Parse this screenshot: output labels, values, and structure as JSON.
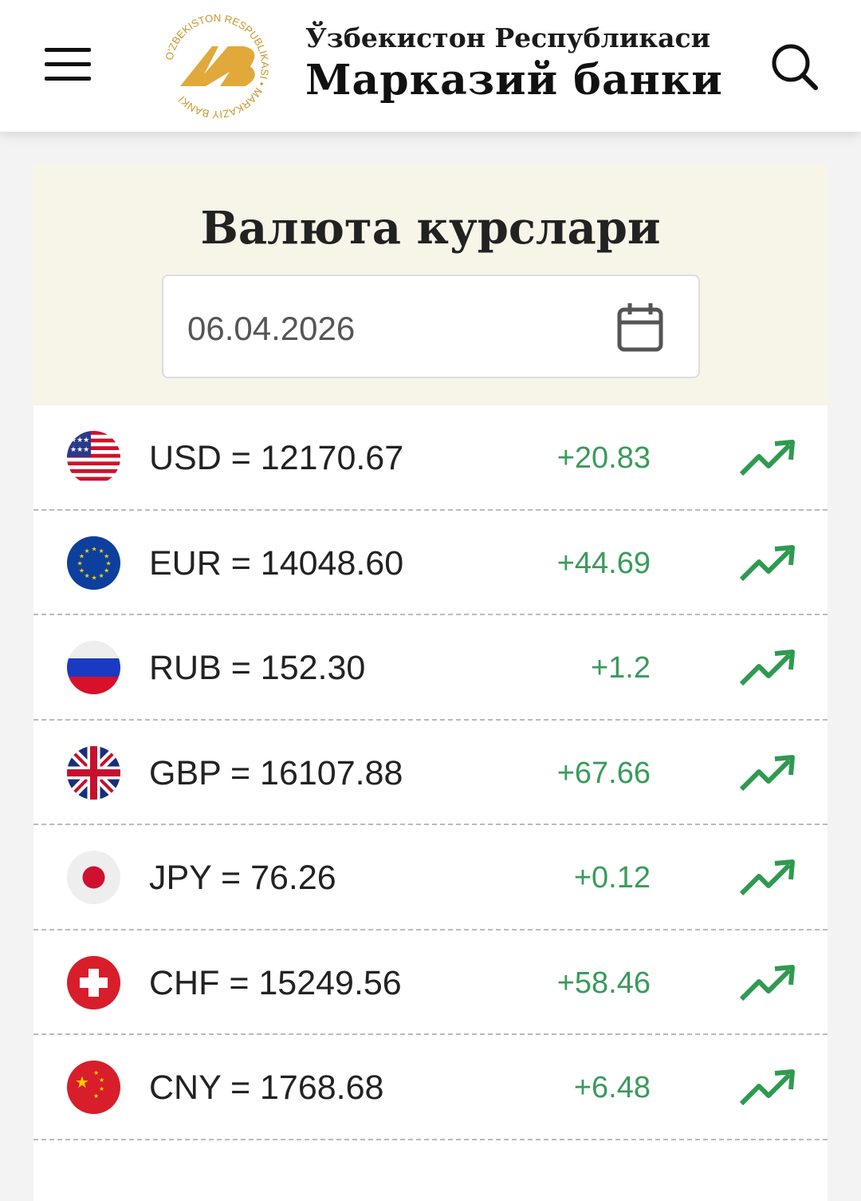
{
  "header": {
    "logo_text": "O'ZBEKISTON RESPUBLIKASI MARKAZIY BANKI",
    "line1": "Ўзбекистон Республикаси",
    "line2": "Марказий банки"
  },
  "main": {
    "title": "Валюта курслари",
    "date": "06.04.2026"
  },
  "colors": {
    "accent": "#3a9a5b",
    "gold": "#e0a93a",
    "panel": "#f6f5e8"
  },
  "rates": [
    {
      "code": "USD",
      "label": "USD = 12170.67",
      "change": "+20.83",
      "trend": "up"
    },
    {
      "code": "EUR",
      "label": "EUR = 14048.60",
      "change": "+44.69",
      "trend": "up"
    },
    {
      "code": "RUB",
      "label": "RUB = 152.30",
      "change": "+1.2",
      "trend": "up"
    },
    {
      "code": "GBP",
      "label": "GBP = 16107.88",
      "change": "+67.66",
      "trend": "up"
    },
    {
      "code": "JPY",
      "label": "JPY = 76.26",
      "change": "+0.12",
      "trend": "up"
    },
    {
      "code": "CHF",
      "label": "CHF = 15249.56",
      "change": "+58.46",
      "trend": "up"
    },
    {
      "code": "CNY",
      "label": "CNY = 1768.68",
      "change": "+6.48",
      "trend": "up"
    }
  ]
}
